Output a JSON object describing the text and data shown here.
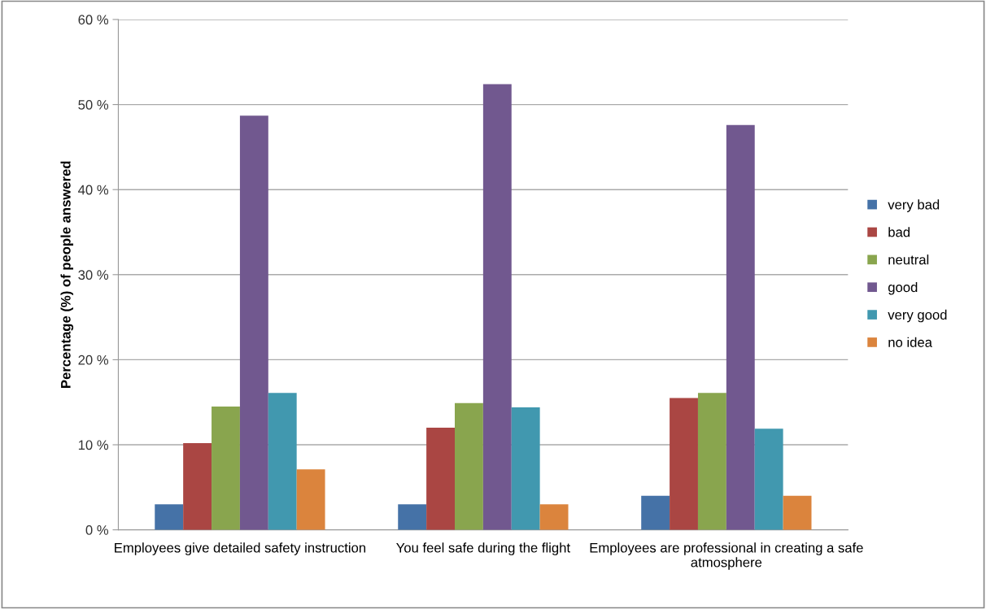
{
  "chart_data": {
    "type": "bar",
    "ylabel": "Percentage (%) of people answered",
    "categories": [
      "Employees give detailed safety instruction",
      "You feel safe during the flight",
      "Employees are professional in creating a safe atmosphere"
    ],
    "series": [
      {
        "name": "very bad",
        "color": "#4572a7",
        "values": [
          3.0,
          3.0,
          4.0
        ]
      },
      {
        "name": "bad",
        "color": "#aa4643",
        "values": [
          10.2,
          12.0,
          15.5
        ]
      },
      {
        "name": "neutral",
        "color": "#89a54e",
        "values": [
          14.5,
          14.9,
          16.1
        ]
      },
      {
        "name": "good",
        "color": "#71588f",
        "values": [
          48.7,
          52.4,
          47.6
        ]
      },
      {
        "name": "very good",
        "color": "#4198af",
        "values": [
          16.1,
          14.4,
          11.9
        ]
      },
      {
        "name": "no idea",
        "color": "#db843d",
        "values": [
          7.1,
          3.0,
          4.0
        ]
      }
    ],
    "ylim": [
      0,
      60
    ],
    "yticks": [
      {
        "value": 0,
        "label": "0 %"
      },
      {
        "value": 10,
        "label": "10 %"
      },
      {
        "value": 20,
        "label": "20 %"
      },
      {
        "value": 30,
        "label": "30 %"
      },
      {
        "value": 40,
        "label": "40 %"
      },
      {
        "value": 50,
        "label": "50 %"
      },
      {
        "value": 60,
        "label": "60 %"
      }
    ],
    "grid": "y",
    "legend": "right"
  }
}
